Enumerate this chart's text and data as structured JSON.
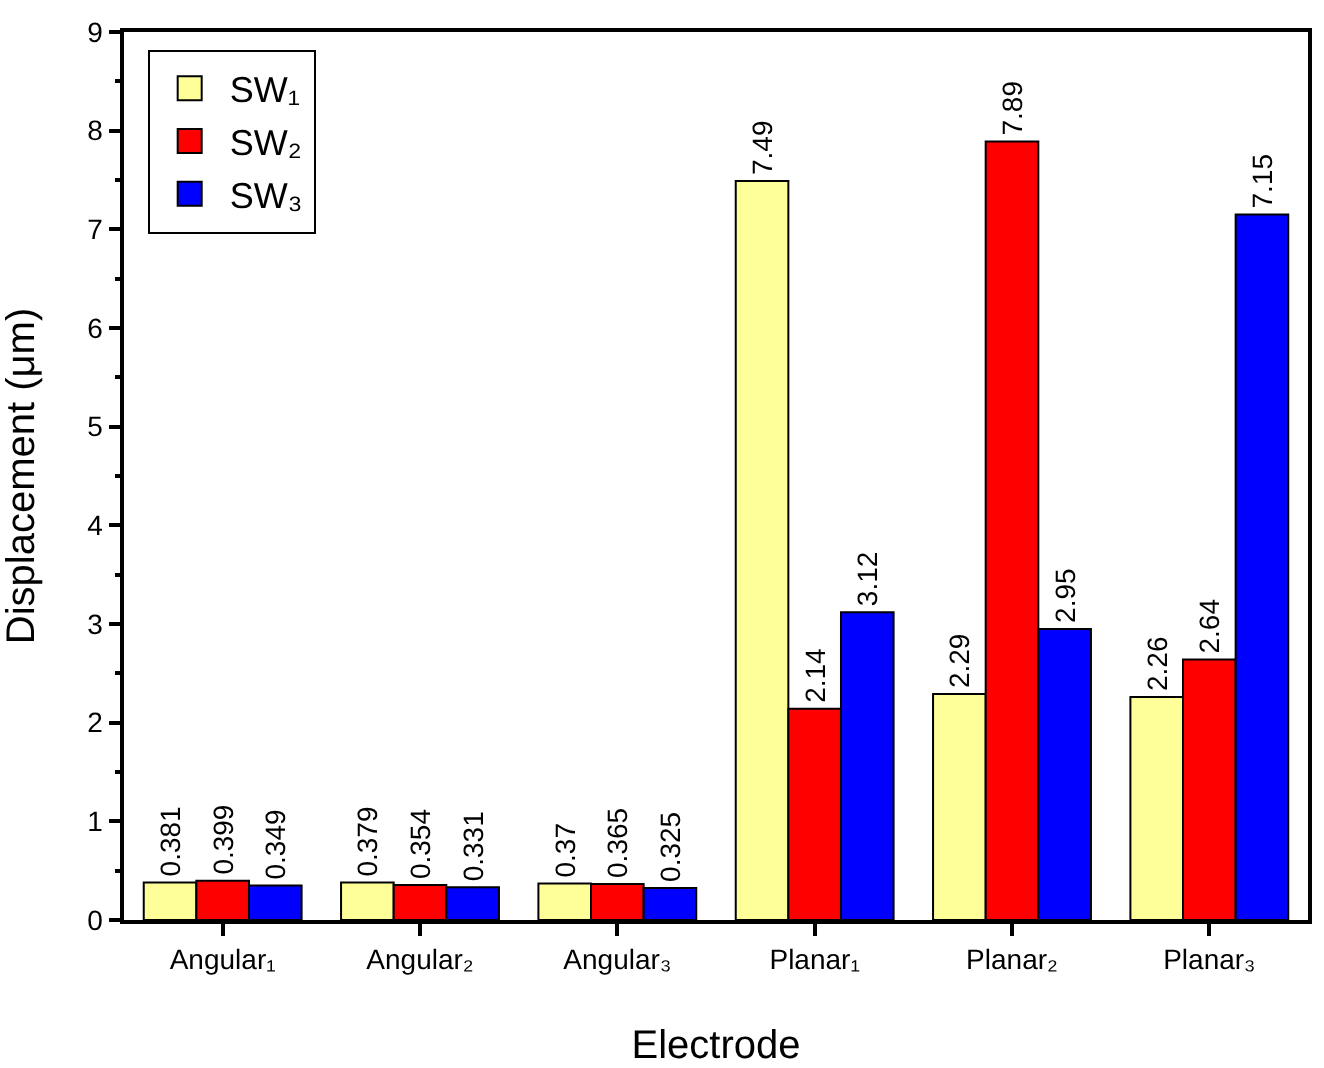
{
  "chart_data": {
    "type": "bar",
    "xlabel": "Electrode",
    "ylabel": "Displacement (μm)",
    "categories": [
      "Angular₁",
      "Angular₂",
      "Angular₃",
      "Planar₁",
      "Planar₂",
      "Planar₃"
    ],
    "series": [
      {
        "name": "SW₁",
        "color": "#ffff99",
        "values": [
          0.381,
          0.379,
          0.37,
          7.49,
          2.29,
          2.26
        ]
      },
      {
        "name": "SW₂",
        "color": "#ff0000",
        "values": [
          0.399,
          0.354,
          0.365,
          2.14,
          7.89,
          2.64
        ]
      },
      {
        "name": "SW₃",
        "color": "#0000ff",
        "values": [
          0.349,
          0.331,
          0.325,
          3.12,
          2.95,
          7.15
        ]
      }
    ],
    "ylim": [
      0,
      9
    ],
    "yticks": [
      0,
      1,
      2,
      3,
      4,
      5,
      6,
      7,
      8,
      9
    ],
    "grid": false,
    "legend": "top left",
    "data_labels": true
  }
}
